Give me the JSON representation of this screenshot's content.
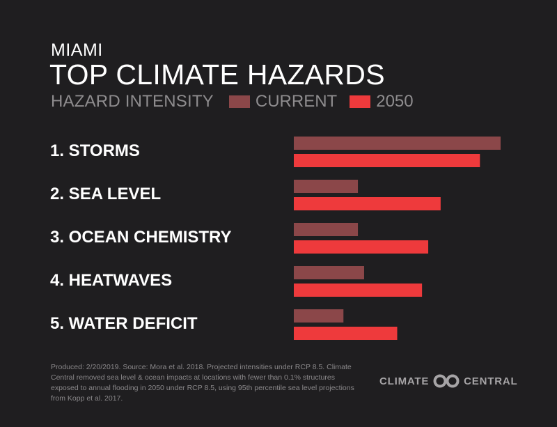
{
  "header": {
    "city": "MIAMI",
    "title": "TOP CLIMATE HAZARDS"
  },
  "legend": {
    "label": "HAZARD INTENSITY",
    "items": [
      {
        "name": "CURRENT",
        "color": "#8b4749"
      },
      {
        "name": "2050",
        "color": "#ee3a3c"
      }
    ]
  },
  "chart_data": {
    "type": "bar",
    "orientation": "horizontal",
    "categories": [
      "1. STORMS",
      "2. SEA LEVEL",
      "3. OCEAN CHEMISTRY",
      "4. HEATWAVES",
      "5. WATER DEFICIT"
    ],
    "series": [
      {
        "name": "CURRENT",
        "color": "#8b4749",
        "values": [
          1.0,
          0.31,
          0.31,
          0.34,
          0.24
        ]
      },
      {
        "name": "2050",
        "color": "#ee3a3c",
        "values": [
          0.9,
          0.71,
          0.65,
          0.62,
          0.5
        ]
      }
    ],
    "xlim": [
      0,
      1
    ],
    "grid": false,
    "legend_position": "top"
  },
  "footer": {
    "note": "Produced: 2/20/2019. Source: Mora et al. 2018. Projected intensities under RCP 8.5. Climate Central removed sea level & ocean impacts at locations with fewer than 0.1% structures exposed to annual flooding in 2050 under RCP 8.5, using 95th percentile sea level projections from  Kopp et al. 2017.",
    "brand_left": "CLIMATE",
    "brand_right": "CENTRAL",
    "brand_icon": "climate-central-logo-icon"
  }
}
